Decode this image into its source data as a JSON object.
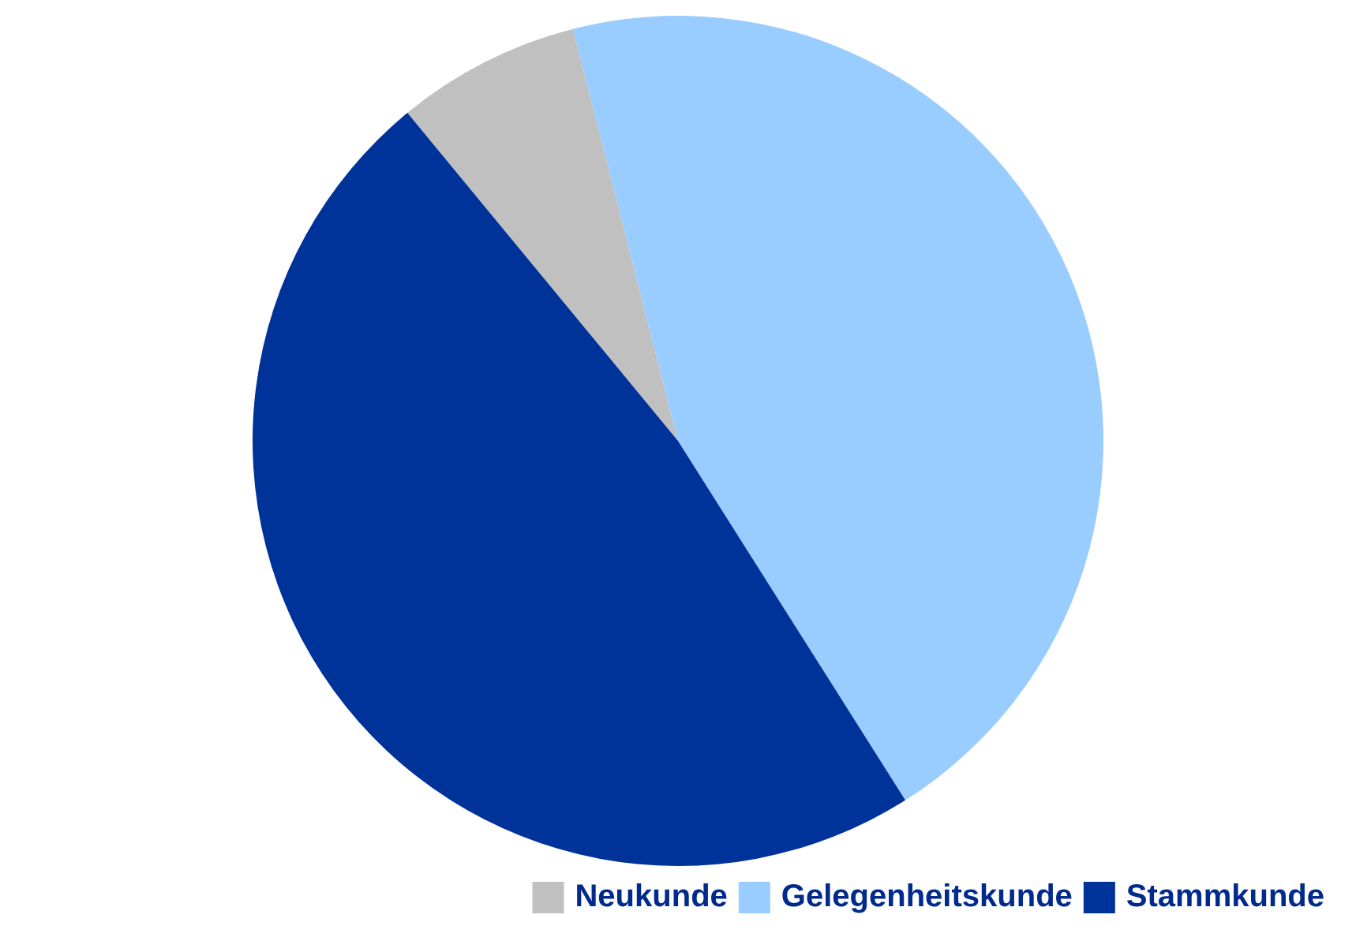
{
  "chart_data": {
    "type": "pie",
    "categories": [
      "Neukunde",
      "Gelegenheitskunde",
      "Stammkunde"
    ],
    "values": [
      7,
      45,
      48
    ],
    "colors": [
      "#c0c0c0",
      "#99ccff",
      "#003399"
    ],
    "legend": "bottom right"
  }
}
